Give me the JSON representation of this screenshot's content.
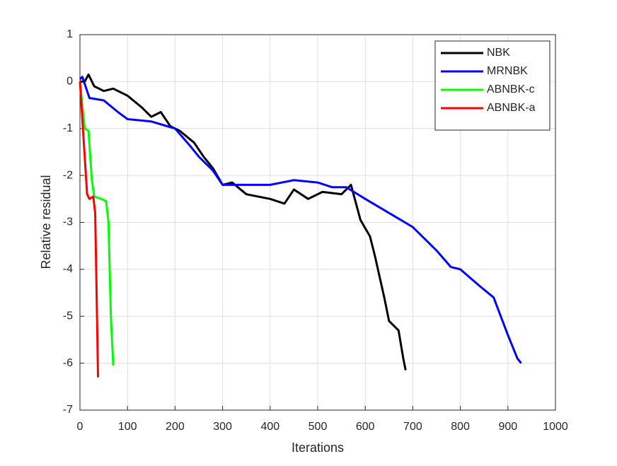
{
  "chart_data": {
    "type": "line",
    "xlabel": "Iterations",
    "ylabel": "Relative residual",
    "xlim": [
      0,
      1000
    ],
    "xticks": [
      0,
      100,
      200,
      300,
      400,
      500,
      600,
      700,
      800,
      900,
      1000
    ],
    "ylim": [
      -7,
      1
    ],
    "yticks": [
      -7,
      -6,
      -5,
      -4,
      -3,
      -2,
      -1,
      0,
      1
    ],
    "grid": true,
    "legend": "top-right",
    "series": [
      {
        "name": "NBK",
        "color": "#000000",
        "x": [
          0,
          10,
          18,
          30,
          50,
          70,
          100,
          130,
          150,
          170,
          190,
          210,
          240,
          260,
          280,
          300,
          320,
          350,
          400,
          430,
          450,
          480,
          510,
          550,
          570,
          590,
          610,
          620,
          640,
          650,
          670,
          680,
          685
        ],
        "values": [
          0,
          0.0,
          0.15,
          -0.1,
          -0.2,
          -0.15,
          -0.3,
          -0.55,
          -0.75,
          -0.65,
          -0.95,
          -1.05,
          -1.3,
          -1.6,
          -1.85,
          -2.2,
          -2.15,
          -2.4,
          -2.5,
          -2.6,
          -2.3,
          -2.5,
          -2.35,
          -2.4,
          -2.2,
          -2.95,
          -3.3,
          -3.7,
          -4.6,
          -5.1,
          -5.3,
          -5.9,
          -6.15
        ]
      },
      {
        "name": "MRNBK",
        "color": "#0000ff",
        "x": [
          0,
          5,
          20,
          50,
          80,
          100,
          150,
          200,
          230,
          250,
          280,
          300,
          350,
          400,
          450,
          500,
          530,
          560,
          600,
          650,
          700,
          750,
          780,
          800,
          840,
          870,
          900,
          920,
          928
        ],
        "values": [
          0.05,
          0.1,
          -0.35,
          -0.4,
          -0.65,
          -0.8,
          -0.85,
          -1.0,
          -1.35,
          -1.6,
          -1.9,
          -2.2,
          -2.2,
          -2.2,
          -2.1,
          -2.15,
          -2.25,
          -2.25,
          -2.5,
          -2.8,
          -3.1,
          -3.6,
          -3.95,
          -4.0,
          -4.35,
          -4.6,
          -5.4,
          -5.9,
          -6.0
        ]
      },
      {
        "name": "ABNBK-c",
        "color": "#00ff00",
        "x": [
          0,
          5,
          10,
          18,
          25,
          30,
          45,
          55,
          60,
          65,
          70
        ],
        "values": [
          0,
          -0.5,
          -1.0,
          -1.05,
          -2.1,
          -2.45,
          -2.5,
          -2.55,
          -3.0,
          -5.0,
          -6.05
        ]
      },
      {
        "name": "ABNBK-a",
        "color": "#ff0000",
        "x": [
          0,
          5,
          10,
          15,
          20,
          28,
          32,
          35,
          38
        ],
        "values": [
          0,
          -0.8,
          -1.6,
          -2.4,
          -2.5,
          -2.45,
          -2.8,
          -4.5,
          -6.3
        ]
      }
    ]
  }
}
